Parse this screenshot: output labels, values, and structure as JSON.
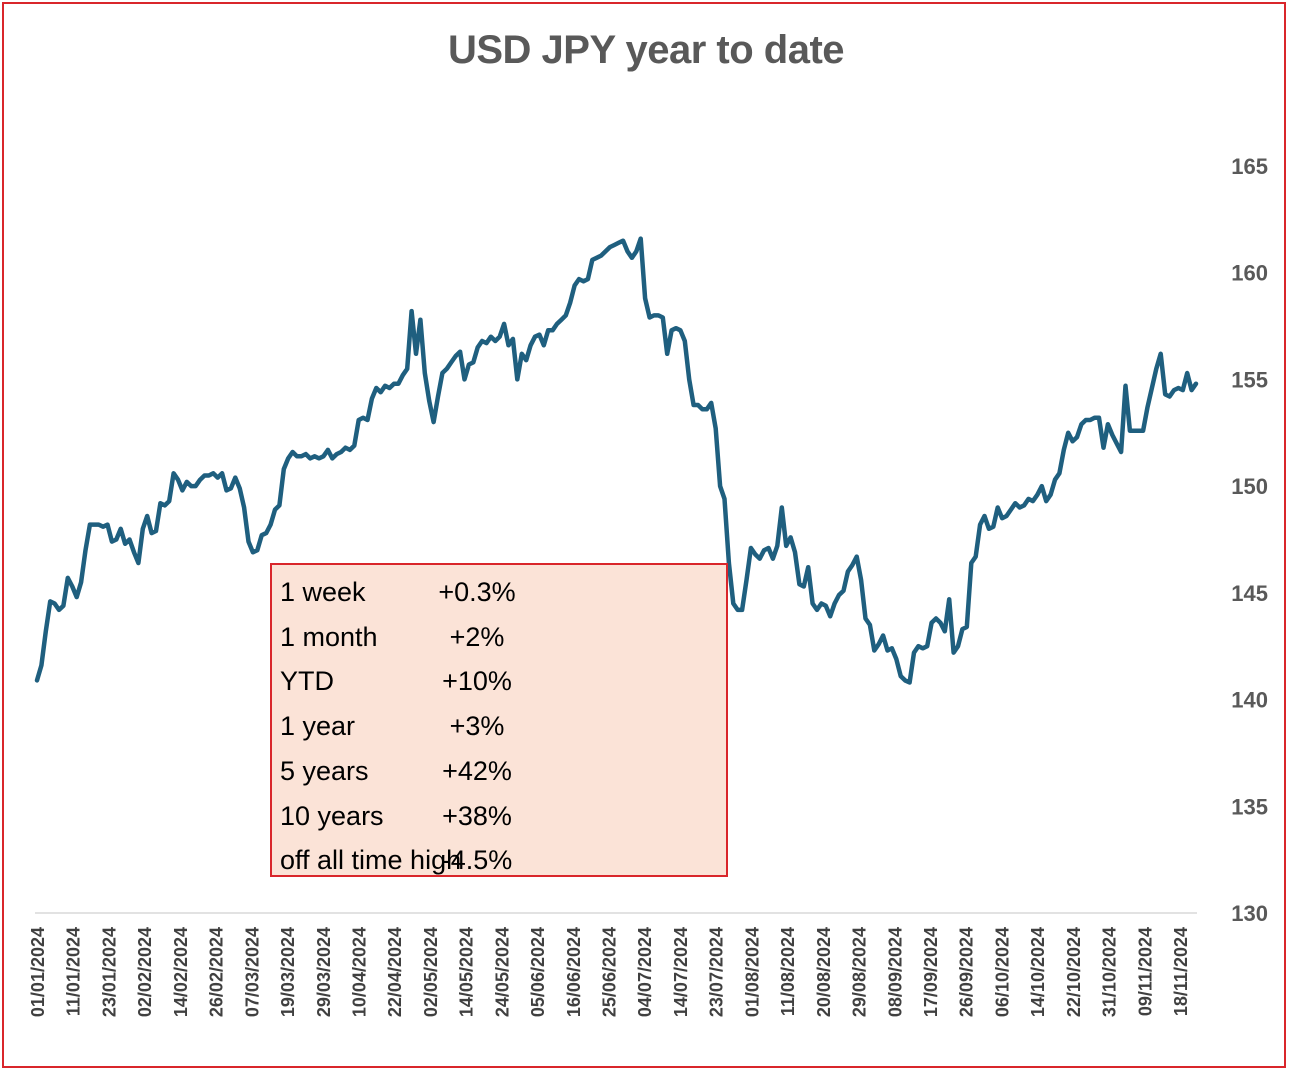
{
  "colors": {
    "line": "#1f5f7f",
    "frame": "#d9262b",
    "box_bg": "#fbe3d7",
    "text": "#595959"
  },
  "stats": {
    "rows": [
      {
        "label": "1 week",
        "value": "+0.3%"
      },
      {
        "label": "1 month",
        "value": "+2%"
      },
      {
        "label": "YTD",
        "value": "+10%"
      },
      {
        "label": "1 year",
        "value": "+3%"
      },
      {
        "label": "5 years",
        "value": "+42%"
      },
      {
        "label": "10 years",
        "value": "+38%"
      },
      {
        "label": "off all time high",
        "value": "-4.5%"
      }
    ]
  },
  "chart_data": {
    "type": "line",
    "title": "USD JPY year to date",
    "xlabel": "",
    "ylabel": "",
    "ylim": [
      130,
      165
    ],
    "yticks": [
      130,
      135,
      140,
      145,
      150,
      155,
      160,
      165
    ],
    "xticks": [
      "01/01/2024",
      "11/01/2024",
      "23/01/2024",
      "02/02/2024",
      "14/02/2024",
      "26/02/2024",
      "07/03/2024",
      "19/03/2024",
      "29/03/2024",
      "10/04/2024",
      "22/04/2024",
      "02/05/2024",
      "14/05/2024",
      "24/05/2024",
      "05/06/2024",
      "16/06/2024",
      "25/06/2024",
      "04/07/2024",
      "14/07/2024",
      "23/07/2024",
      "01/08/2024",
      "11/08/2024",
      "20/08/2024",
      "29/08/2024",
      "08/09/2024",
      "17/09/2024",
      "26/09/2024",
      "06/10/2024",
      "14/10/2024",
      "22/10/2024",
      "31/10/2024",
      "09/11/2024",
      "18/11/2024"
    ],
    "series": [
      {
        "name": "USD JPY",
        "values": [
          140.9,
          141.6,
          143.2,
          144.6,
          144.5,
          144.2,
          144.4,
          145.7,
          145.3,
          144.8,
          145.5,
          147.0,
          148.2,
          148.2,
          148.2,
          148.1,
          148.2,
          147.4,
          147.5,
          148.0,
          147.3,
          147.5,
          146.9,
          146.4,
          148.0,
          148.6,
          147.8,
          147.9,
          149.2,
          149.1,
          149.3,
          150.6,
          150.3,
          149.8,
          150.2,
          150.0,
          150.0,
          150.3,
          150.5,
          150.5,
          150.6,
          150.4,
          150.6,
          149.8,
          149.9,
          150.4,
          149.9,
          149.0,
          147.4,
          146.9,
          147.0,
          147.7,
          147.8,
          148.2,
          148.9,
          149.1,
          150.8,
          151.3,
          151.6,
          151.4,
          151.4,
          151.5,
          151.3,
          151.4,
          151.3,
          151.4,
          151.7,
          151.3,
          151.5,
          151.6,
          151.8,
          151.7,
          151.9,
          153.1,
          153.2,
          153.1,
          154.1,
          154.6,
          154.4,
          154.7,
          154.6,
          154.8,
          154.8,
          155.2,
          155.5,
          158.2,
          156.2,
          157.8,
          155.3,
          154.0,
          153.0,
          154.2,
          155.3,
          155.5,
          155.8,
          156.1,
          156.3,
          155.0,
          155.7,
          155.8,
          156.5,
          156.8,
          156.7,
          157.0,
          156.8,
          157.0,
          157.6,
          156.6,
          156.9,
          155.0,
          156.2,
          155.9,
          156.6,
          157.0,
          157.1,
          156.6,
          157.3,
          157.3,
          157.6,
          157.8,
          158.0,
          158.6,
          159.4,
          159.7,
          159.6,
          159.7,
          160.6,
          160.7,
          160.8,
          161.0,
          161.2,
          161.3,
          161.4,
          161.5,
          161.0,
          160.7,
          161.0,
          161.6,
          158.8,
          157.9,
          158.0,
          158.0,
          157.9,
          156.2,
          157.3,
          157.4,
          157.3,
          156.8,
          155.0,
          153.8,
          153.8,
          153.6,
          153.6,
          153.9,
          152.7,
          150.0,
          149.4,
          146.4,
          144.5,
          144.2,
          144.2,
          145.6,
          147.1,
          146.8,
          146.6,
          147.0,
          147.1,
          146.6,
          147.2,
          149.0,
          147.2,
          147.6,
          146.9,
          145.4,
          145.3,
          146.2,
          144.5,
          144.2,
          144.5,
          144.4,
          143.9,
          144.5,
          144.9,
          145.1,
          146.0,
          146.3,
          146.7,
          145.6,
          143.8,
          143.5,
          142.3,
          142.6,
          143.0,
          142.3,
          142.4,
          141.9,
          141.1,
          140.9,
          140.8,
          142.2,
          142.5,
          142.4,
          142.5,
          143.6,
          143.8,
          143.6,
          143.2,
          144.7,
          142.2,
          142.5,
          143.3,
          143.4,
          146.4,
          146.7,
          148.2,
          148.6,
          148.0,
          148.1,
          149.0,
          148.5,
          148.6,
          148.9,
          149.2,
          149.0,
          149.1,
          149.4,
          149.3,
          149.6,
          150.0,
          149.3,
          149.6,
          150.3,
          150.6,
          151.7,
          152.5,
          152.1,
          152.3,
          152.9,
          153.1,
          153.1,
          153.2,
          153.2,
          151.8,
          152.9,
          152.4,
          152.0,
          151.6,
          154.7,
          152.6,
          152.6,
          152.6,
          152.6,
          153.7,
          154.6,
          155.5,
          156.2,
          154.3,
          154.2,
          154.5,
          154.6,
          154.5,
          155.3,
          154.5,
          154.8
        ],
        "color": "#1f5f7f"
      }
    ]
  }
}
